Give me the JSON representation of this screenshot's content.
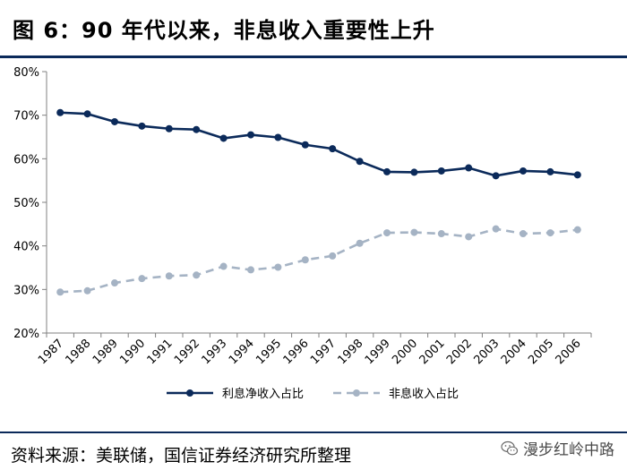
{
  "figure": {
    "title": "图 6：90 年代以来，非息收入重要性上升",
    "source": "资料来源：美联储，国信证券经济研究所整理",
    "watermark": "漫步红岭中路"
  },
  "colors": {
    "series1": "#0b2a5a",
    "series2": "#a5b3c4",
    "rule": "#0b2a5a"
  },
  "chart_data": {
    "type": "line",
    "title": "",
    "xlabel": "",
    "ylabel": "",
    "categories": [
      "1987",
      "1988",
      "1989",
      "1990",
      "1991",
      "1992",
      "1993",
      "1994",
      "1995",
      "1996",
      "1997",
      "1998",
      "1999",
      "2000",
      "2001",
      "2002",
      "2003",
      "2004",
      "2005",
      "2006"
    ],
    "ylim": [
      20,
      80
    ],
    "yticks": [
      "20%",
      "30%",
      "40%",
      "50%",
      "60%",
      "70%",
      "80%"
    ],
    "legend_position": "bottom",
    "grid": false,
    "series": [
      {
        "name": "利息净收入占比",
        "style": "solid",
        "values": [
          70.6,
          70.3,
          68.5,
          67.5,
          66.9,
          66.7,
          64.7,
          65.5,
          64.9,
          63.2,
          62.3,
          59.4,
          57.0,
          56.9,
          57.2,
          57.9,
          56.1,
          57.2,
          57.0,
          56.3
        ]
      },
      {
        "name": "非息收入占比",
        "style": "dashed",
        "values": [
          29.4,
          29.7,
          31.5,
          32.5,
          33.1,
          33.3,
          35.3,
          34.5,
          35.1,
          36.8,
          37.7,
          40.6,
          43.0,
          43.1,
          42.8,
          42.1,
          43.9,
          42.8,
          43.0,
          43.7
        ]
      }
    ]
  }
}
